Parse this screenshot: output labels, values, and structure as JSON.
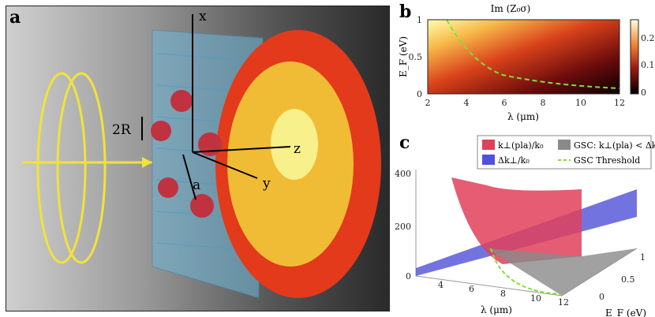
{
  "panels": {
    "a": {
      "label": "a",
      "axis_x": "x",
      "axis_y": "y",
      "axis_z": "z",
      "radius_label": "2R",
      "spacing_label": "a"
    },
    "b": {
      "label": "b",
      "title": "Im (Z₀σ)",
      "ylabel": "E_F (eV)",
      "xlabel": "λ (μm)",
      "x_ticks": [
        "2",
        "4",
        "6",
        "8",
        "10",
        "12"
      ],
      "y_ticks": [
        "0",
        "0.5",
        "1"
      ],
      "colorbar_ticks": [
        "0.2",
        "0.1",
        "0"
      ]
    },
    "c": {
      "label": "c",
      "xlabel": "λ (μm)",
      "ylabel": "E_F (eV)",
      "z_ticks": [
        "400",
        "200",
        "0"
      ],
      "x_ticks": [
        "4",
        "6",
        "8",
        "10",
        "12"
      ],
      "y_ticks": [
        "1",
        "0.5",
        "0"
      ],
      "legend": [
        "k⊥(pla)/k₀",
        "Δk⊥/k₀",
        "GSC: k⊥(pla) < Δk⊥",
        "GSC Threshold"
      ],
      "legend_colors": [
        "#e0405a",
        "#5050d8",
        "#8a8a8a",
        "#7be03a"
      ]
    }
  },
  "chart_data": [
    {
      "type": "heatmap",
      "title": "Im (Z₀σ)",
      "xlabel": "λ (μm)",
      "ylabel": "E_F (eV)",
      "xlim": [
        2,
        12
      ],
      "ylim": [
        0,
        1
      ],
      "colorbar_range": [
        0,
        0.25
      ],
      "threshold_curve": {
        "x": [
          3,
          4,
          5,
          6,
          8,
          10,
          12
        ],
        "y": [
          1.0,
          0.55,
          0.37,
          0.27,
          0.17,
          0.12,
          0.1
        ]
      }
    },
    {
      "type": "surface",
      "xlabel": "λ (μm)",
      "ylabel": "E_F (eV)",
      "zlim": [
        0,
        400
      ]
    }
  ]
}
